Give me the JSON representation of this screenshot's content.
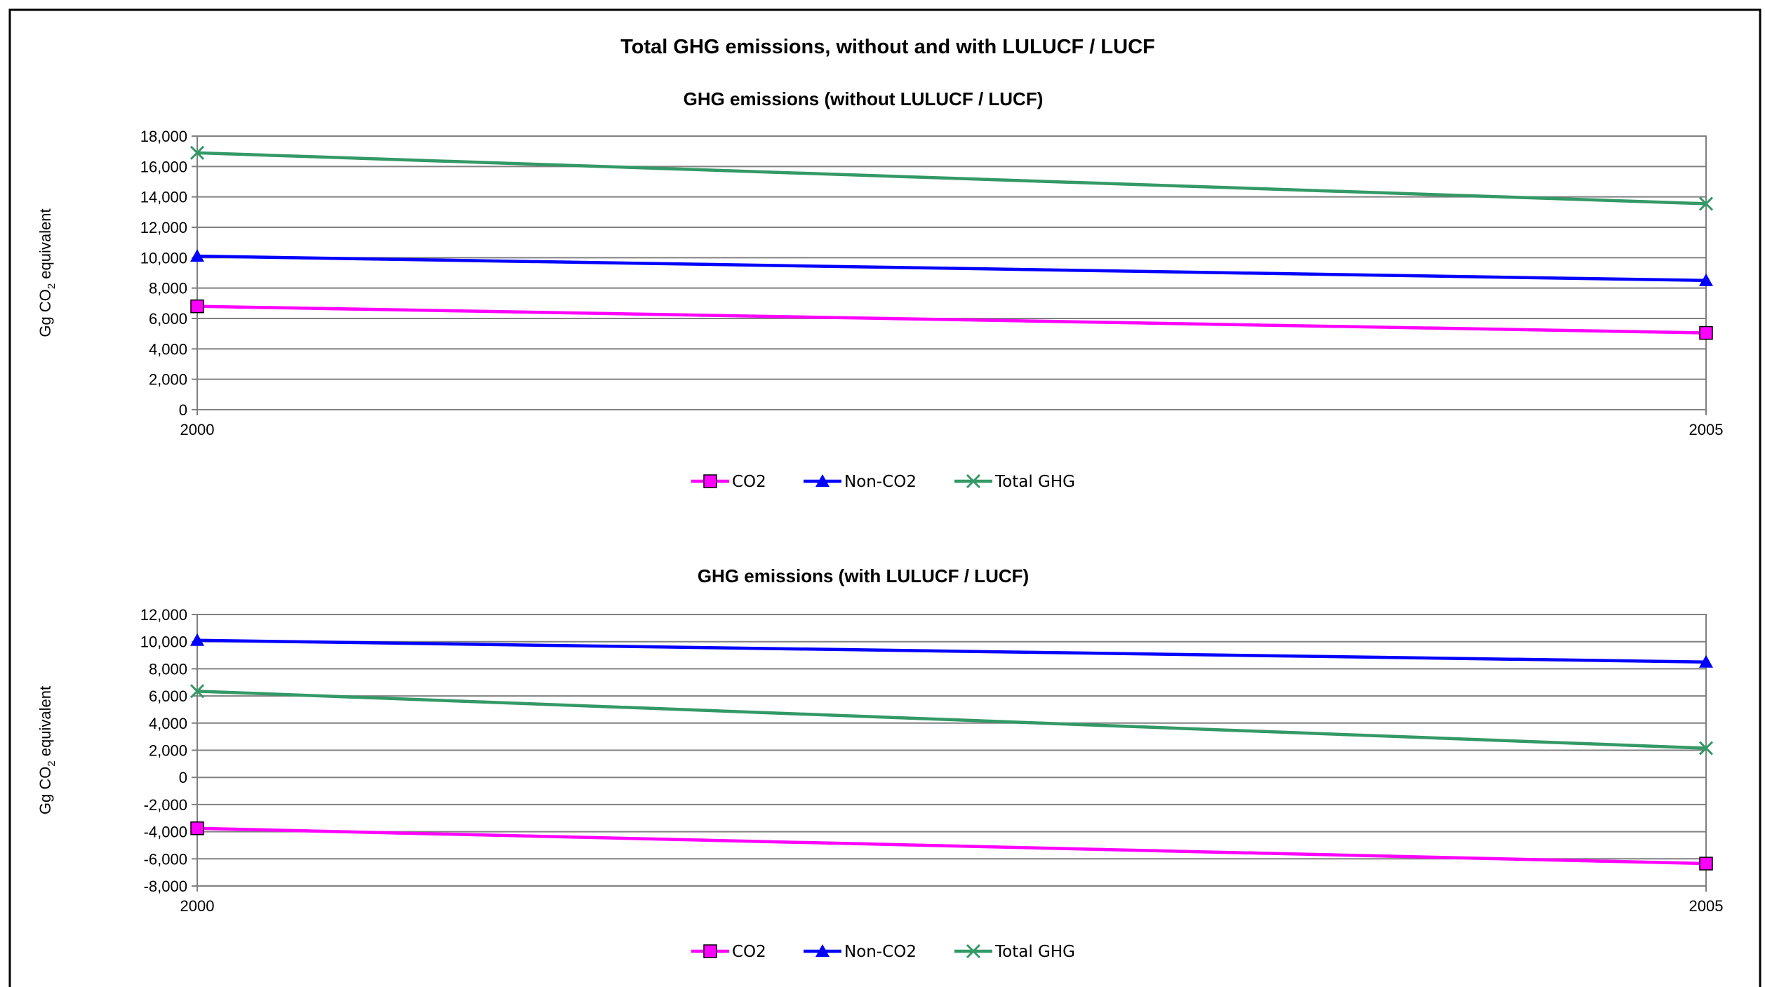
{
  "title": "Total GHG emissions, without and with LULUCF / LUCF",
  "chart_data": [
    {
      "type": "line",
      "title": "GHG emissions (without LULUCF / LUCF)",
      "ylabel": "Gg CO2 equivalent",
      "x": [
        "2000",
        "2005"
      ],
      "ylim": [
        0,
        18000
      ],
      "yticks": [
        0,
        2000,
        4000,
        6000,
        8000,
        10000,
        12000,
        14000,
        16000,
        18000
      ],
      "ytick_labels": [
        "0",
        "2,000",
        "4,000",
        "6,000",
        "8,000",
        "10,000",
        "12,000",
        "14,000",
        "16,000",
        "18,000"
      ],
      "grid": true,
      "legend_position": "bottom",
      "series": [
        {
          "name": "CO2",
          "values": [
            6800,
            5050
          ],
          "color": "#ff00ff",
          "marker": "square"
        },
        {
          "name": "Non-CO2",
          "values": [
            10100,
            8500
          ],
          "color": "#0000ff",
          "marker": "triangle"
        },
        {
          "name": "Total GHG",
          "values": [
            16900,
            13550
          ],
          "color": "#339966",
          "marker": "x"
        }
      ]
    },
    {
      "type": "line",
      "title": "GHG emissions (with LULUCF / LUCF)",
      "ylabel": "Gg CO2 equivalent",
      "x": [
        "2000",
        "2005"
      ],
      "ylim": [
        -8000,
        12000
      ],
      "yticks": [
        -8000,
        -6000,
        -4000,
        -2000,
        0,
        2000,
        4000,
        6000,
        8000,
        10000,
        12000
      ],
      "ytick_labels": [
        "-8,000",
        "-6,000",
        "-4,000",
        "-2,000",
        "0",
        "2,000",
        "4,000",
        "6,000",
        "8,000",
        "10,000",
        "12,000"
      ],
      "grid": true,
      "legend_position": "bottom",
      "series": [
        {
          "name": "CO2",
          "values": [
            -3750,
            -6350
          ],
          "color": "#ff00ff",
          "marker": "square"
        },
        {
          "name": "Non-CO2",
          "values": [
            10100,
            8500
          ],
          "color": "#0000ff",
          "marker": "triangle"
        },
        {
          "name": "Total GHG",
          "values": [
            6350,
            2150
          ],
          "color": "#339966",
          "marker": "x"
        }
      ]
    }
  ]
}
